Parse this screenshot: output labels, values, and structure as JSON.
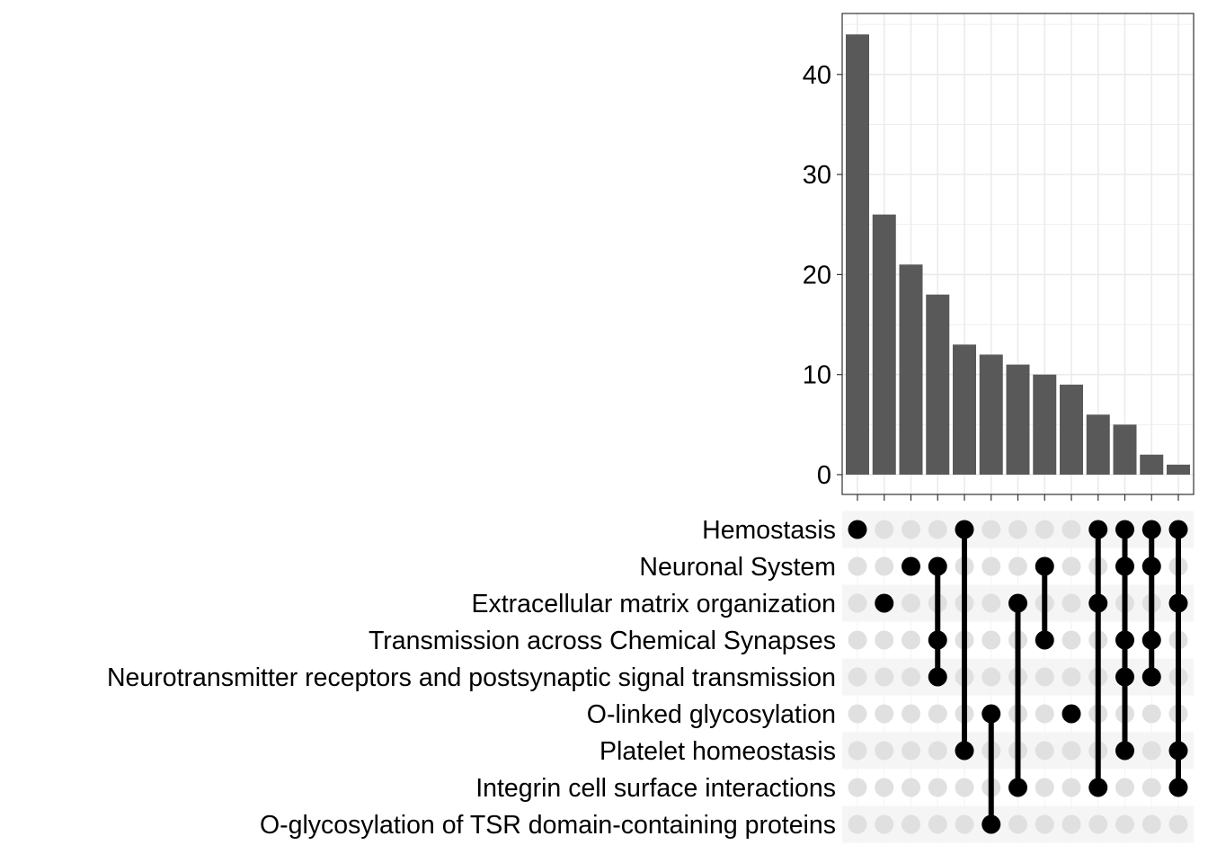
{
  "chart_data": {
    "type": "bar",
    "subtype": "upset",
    "title": "",
    "xlabel": "",
    "ylabel": "",
    "ylim": [
      0,
      46
    ],
    "yticks": [
      0,
      10,
      20,
      30,
      40
    ],
    "sets": [
      "Hemostasis",
      "Neuronal System",
      "Extracellular matrix organization",
      "Transmission across Chemical Synapses",
      "Neurotransmitter receptors and postsynaptic signal transmission",
      "O-linked glycosylation",
      "Platelet homeostasis",
      "Integrin cell surface interactions",
      "O-glycosylation of TSR domain-containing proteins"
    ],
    "intersections": [
      {
        "value": 44,
        "members": [
          0
        ]
      },
      {
        "value": 26,
        "members": [
          2
        ]
      },
      {
        "value": 21,
        "members": [
          1
        ]
      },
      {
        "value": 18,
        "members": [
          1,
          3,
          4
        ]
      },
      {
        "value": 13,
        "members": [
          0,
          6
        ]
      },
      {
        "value": 12,
        "members": [
          5,
          8
        ]
      },
      {
        "value": 11,
        "members": [
          2,
          7
        ]
      },
      {
        "value": 10,
        "members": [
          1,
          3
        ]
      },
      {
        "value": 9,
        "members": [
          5
        ]
      },
      {
        "value": 6,
        "members": [
          0,
          2,
          7
        ]
      },
      {
        "value": 5,
        "members": [
          0,
          1,
          3,
          4,
          6
        ]
      },
      {
        "value": 2,
        "members": [
          0,
          1,
          3,
          4
        ]
      },
      {
        "value": 1,
        "members": [
          0,
          2,
          6,
          7
        ]
      }
    ],
    "colors": {
      "bar": "#595959",
      "dot_active": "#000000",
      "dot_inactive": "#e0e0e0",
      "grid": "#ebebeb",
      "stripe": "#f5f5f5"
    }
  }
}
